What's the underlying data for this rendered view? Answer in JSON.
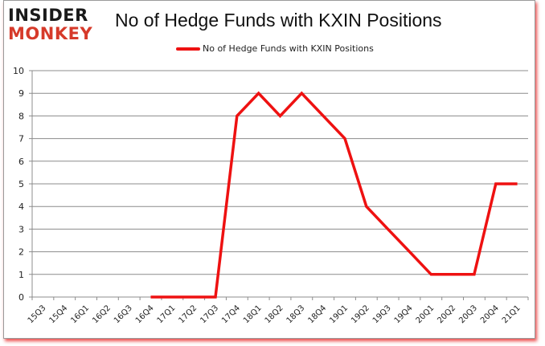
{
  "logo": {
    "line1": "INSIDER",
    "line2": "MONKEY"
  },
  "colors": {
    "series": "#ee1111",
    "grid": "#8c8c8c",
    "frame_shadow": "#e61414",
    "logo_accent": "#d63a2a"
  },
  "chart_data": {
    "type": "line",
    "title": "No of Hedge Funds with KXIN Positions",
    "xlabel": "",
    "ylabel": "",
    "ylim": [
      0,
      10
    ],
    "yticks": [
      0,
      1,
      2,
      3,
      4,
      5,
      6,
      7,
      8,
      9,
      10
    ],
    "grid": true,
    "legend_position": "top",
    "categories": [
      "15Q3",
      "15Q4",
      "16Q1",
      "16Q2",
      "16Q3",
      "16Q4",
      "17Q1",
      "17Q2",
      "17Q3",
      "17Q4",
      "18Q1",
      "18Q2",
      "18Q3",
      "18Q4",
      "19Q1",
      "19Q2",
      "19Q3",
      "19Q4",
      "20Q1",
      "20Q2",
      "20Q3",
      "20Q4",
      "21Q1"
    ],
    "series": [
      {
        "name": "No of Hedge Funds with KXIN Positions",
        "color": "#ee1111",
        "values": [
          null,
          null,
          null,
          null,
          null,
          0,
          0,
          0,
          0,
          8,
          9,
          8,
          9,
          8,
          7,
          4,
          3,
          2,
          1,
          1,
          1,
          5,
          5
        ]
      }
    ]
  }
}
